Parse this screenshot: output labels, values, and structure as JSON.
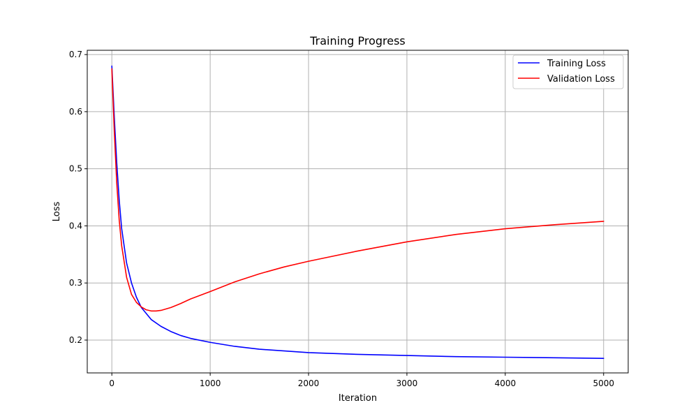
{
  "chart_data": {
    "type": "line",
    "title": "Training Progress",
    "xlabel": "Iteration",
    "ylabel": "Loss",
    "xlim": [
      -250,
      5250
    ],
    "ylim": [
      0.1425,
      0.7075
    ],
    "xticks": [
      0,
      1000,
      2000,
      3000,
      4000,
      5000
    ],
    "yticks": [
      0.2,
      0.3,
      0.4,
      0.5,
      0.6,
      0.7
    ],
    "grid": true,
    "legend_position": "top-right",
    "series": [
      {
        "name": "Training Loss",
        "color": "#0000ff",
        "x": [
          0,
          25,
          50,
          75,
          100,
          150,
          200,
          250,
          300,
          400,
          500,
          600,
          700,
          800,
          1000,
          1250,
          1500,
          2000,
          2500,
          3000,
          3500,
          4000,
          4500,
          5000
        ],
        "y": [
          0.68,
          0.59,
          0.51,
          0.445,
          0.395,
          0.335,
          0.3,
          0.275,
          0.257,
          0.236,
          0.224,
          0.215,
          0.208,
          0.203,
          0.196,
          0.189,
          0.184,
          0.178,
          0.175,
          0.173,
          0.171,
          0.17,
          0.169,
          0.168
        ]
      },
      {
        "name": "Validation Loss",
        "color": "#ff0000",
        "x": [
          0,
          25,
          50,
          75,
          100,
          150,
          200,
          250,
          300,
          350,
          400,
          450,
          500,
          600,
          700,
          800,
          1000,
          1250,
          1500,
          1750,
          2000,
          2500,
          3000,
          3500,
          4000,
          4500,
          5000
        ],
        "y": [
          0.675,
          0.565,
          0.475,
          0.41,
          0.365,
          0.31,
          0.28,
          0.266,
          0.258,
          0.253,
          0.251,
          0.251,
          0.252,
          0.257,
          0.264,
          0.272,
          0.285,
          0.302,
          0.316,
          0.328,
          0.338,
          0.356,
          0.372,
          0.385,
          0.395,
          0.402,
          0.408
        ]
      }
    ]
  }
}
